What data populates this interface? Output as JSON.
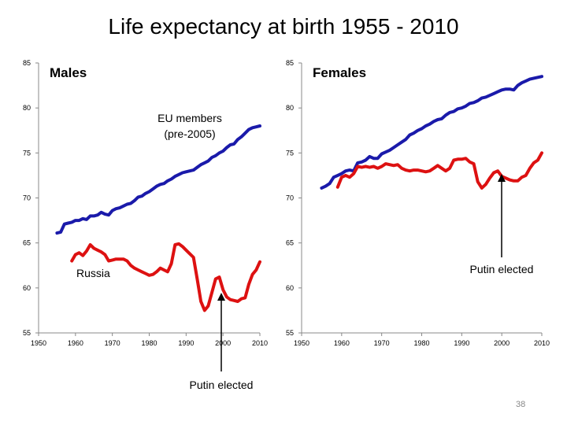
{
  "slide": {
    "title": "Life expectancy at birth 1955 - 2010",
    "page_number": "38"
  },
  "chart_data": [
    {
      "type": "line",
      "title": "Males",
      "xlim": [
        1950,
        2010
      ],
      "ylim": [
        55,
        85
      ],
      "x_ticks": [
        "1950",
        "1960",
        "1970",
        "1980",
        "1990",
        "2000",
        "2010"
      ],
      "y_ticks": [
        "55",
        "60",
        "65",
        "70",
        "75",
        "80",
        "85"
      ],
      "grid": false,
      "colors": {
        "EU members (pre-2005)": "#1a1aaa",
        "Russia": "#dd1111"
      },
      "series": [
        {
          "name": "EU members (pre-2005)",
          "x": [
            1955,
            1956,
            1957,
            1958,
            1959,
            1960,
            1961,
            1962,
            1963,
            1964,
            1965,
            1966,
            1967,
            1968,
            1969,
            1970,
            1971,
            1972,
            1973,
            1974,
            1975,
            1976,
            1977,
            1978,
            1979,
            1980,
            1981,
            1982,
            1983,
            1984,
            1985,
            1986,
            1987,
            1988,
            1989,
            1990,
            1991,
            1992,
            1993,
            1994,
            1995,
            1996,
            1997,
            1998,
            1999,
            2000,
            2001,
            2002,
            2003,
            2004,
            2005,
            2006,
            2007,
            2008,
            2009,
            2010
          ],
          "y": [
            66.1,
            66.2,
            67.1,
            67.2,
            67.3,
            67.5,
            67.5,
            67.7,
            67.6,
            68.0,
            68.0,
            68.1,
            68.4,
            68.2,
            68.1,
            68.6,
            68.8,
            68.9,
            69.1,
            69.3,
            69.4,
            69.7,
            70.1,
            70.2,
            70.5,
            70.7,
            71.0,
            71.3,
            71.5,
            71.6,
            71.9,
            72.1,
            72.4,
            72.6,
            72.8,
            72.9,
            73.0,
            73.1,
            73.4,
            73.7,
            73.9,
            74.1,
            74.5,
            74.7,
            75.0,
            75.2,
            75.6,
            75.9,
            76.0,
            76.5,
            76.8,
            77.2,
            77.6,
            77.8,
            77.9,
            78.0
          ]
        },
        {
          "name": "Russia",
          "x": [
            1959,
            1960,
            1961,
            1962,
            1963,
            1964,
            1965,
            1966,
            1967,
            1968,
            1969,
            1970,
            1971,
            1972,
            1973,
            1974,
            1975,
            1976,
            1977,
            1978,
            1979,
            1980,
            1981,
            1982,
            1983,
            1984,
            1985,
            1986,
            1987,
            1988,
            1989,
            1990,
            1991,
            1992,
            1993,
            1994,
            1995,
            1996,
            1997,
            1998,
            1999,
            2000,
            2001,
            2002,
            2003,
            2004,
            2005,
            2006,
            2007,
            2008,
            2009,
            2010
          ],
          "y": [
            63.0,
            63.7,
            63.9,
            63.6,
            64.1,
            64.8,
            64.4,
            64.2,
            64.0,
            63.7,
            63.0,
            63.1,
            63.2,
            63.2,
            63.2,
            63.0,
            62.5,
            62.2,
            62.0,
            61.8,
            61.6,
            61.4,
            61.5,
            61.8,
            62.2,
            62.0,
            61.8,
            62.7,
            64.8,
            64.9,
            64.6,
            64.2,
            63.8,
            63.4,
            61.0,
            58.5,
            57.5,
            58.0,
            59.5,
            61.0,
            61.2,
            59.8,
            59.0,
            58.7,
            58.6,
            58.5,
            58.8,
            58.9,
            60.4,
            61.5,
            62.0,
            62.9
          ]
        }
      ],
      "annotations": [
        "EU members (pre-2005)",
        "Russia",
        "Putin elected"
      ]
    },
    {
      "type": "line",
      "title": "Females",
      "xlim": [
        1950,
        2010
      ],
      "ylim": [
        55,
        85
      ],
      "x_ticks": [
        "1950",
        "1960",
        "1970",
        "1980",
        "1990",
        "2000",
        "2010"
      ],
      "y_ticks": [
        "55",
        "60",
        "65",
        "70",
        "75",
        "80",
        "85"
      ],
      "grid": false,
      "colors": {
        "EU members (pre-2005)": "#1a1aaa",
        "Russia": "#dd1111"
      },
      "series": [
        {
          "name": "EU members (pre-2005)",
          "x": [
            1955,
            1956,
            1957,
            1958,
            1959,
            1960,
            1961,
            1962,
            1963,
            1964,
            1965,
            1966,
            1967,
            1968,
            1969,
            1970,
            1971,
            1972,
            1973,
            1974,
            1975,
            1976,
            1977,
            1978,
            1979,
            1980,
            1981,
            1982,
            1983,
            1984,
            1985,
            1986,
            1987,
            1988,
            1989,
            1990,
            1991,
            1992,
            1993,
            1994,
            1995,
            1996,
            1997,
            1998,
            1999,
            2000,
            2001,
            2002,
            2003,
            2004,
            2005,
            2006,
            2007,
            2008,
            2009,
            2010
          ],
          "y": [
            71.1,
            71.3,
            71.6,
            72.3,
            72.5,
            72.7,
            73.0,
            73.1,
            73.0,
            73.9,
            74.0,
            74.2,
            74.6,
            74.4,
            74.4,
            74.9,
            75.1,
            75.3,
            75.6,
            75.9,
            76.2,
            76.5,
            77.0,
            77.2,
            77.5,
            77.7,
            78.0,
            78.2,
            78.5,
            78.7,
            78.8,
            79.2,
            79.5,
            79.6,
            79.9,
            80.0,
            80.2,
            80.5,
            80.6,
            80.8,
            81.1,
            81.2,
            81.4,
            81.6,
            81.8,
            82.0,
            82.1,
            82.1,
            82.0,
            82.5,
            82.8,
            83.0,
            83.2,
            83.3,
            83.4,
            83.5
          ]
        },
        {
          "name": "Russia",
          "x": [
            1959,
            1960,
            1961,
            1962,
            1963,
            1964,
            1965,
            1966,
            1967,
            1968,
            1969,
            1970,
            1971,
            1972,
            1973,
            1974,
            1975,
            1976,
            1977,
            1978,
            1979,
            1980,
            1981,
            1982,
            1983,
            1984,
            1985,
            1986,
            1987,
            1988,
            1989,
            1990,
            1991,
            1992,
            1993,
            1994,
            1995,
            1996,
            1997,
            1998,
            1999,
            2000,
            2001,
            2002,
            2003,
            2004,
            2005,
            2006,
            2007,
            2008,
            2009,
            2010
          ],
          "y": [
            71.2,
            72.3,
            72.5,
            72.3,
            72.7,
            73.5,
            73.4,
            73.5,
            73.4,
            73.5,
            73.3,
            73.5,
            73.8,
            73.7,
            73.6,
            73.7,
            73.3,
            73.1,
            73.0,
            73.1,
            73.1,
            73.0,
            72.9,
            73.0,
            73.3,
            73.6,
            73.3,
            73.0,
            73.3,
            74.2,
            74.3,
            74.3,
            74.4,
            74.0,
            73.8,
            71.8,
            71.1,
            71.5,
            72.2,
            72.8,
            73.0,
            72.4,
            72.2,
            72.0,
            71.9,
            71.9,
            72.3,
            72.5,
            73.3,
            73.9,
            74.2,
            75.0
          ]
        }
      ],
      "annotations": [
        "Putin elected"
      ]
    }
  ]
}
